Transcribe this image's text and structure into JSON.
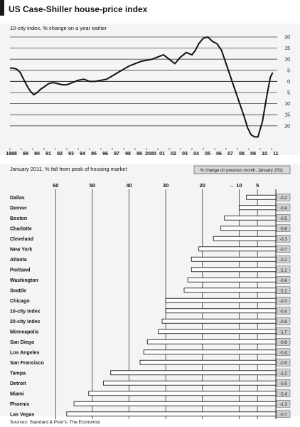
{
  "title": "US Case-Shiller house-price index",
  "source": "Sources: Standard & Poor's; The Economist",
  "chart_data": [
    {
      "type": "line",
      "title": "",
      "subtitle": "10-city index, % change on a year earlier",
      "x_tick_labels": [
        "1988",
        "89",
        "90",
        "91",
        "92",
        "93",
        "94",
        "95",
        "96",
        "97",
        "98",
        "99",
        "2000",
        "01",
        "02",
        "03",
        "04",
        "05",
        "06",
        "07",
        "08",
        "09",
        "10",
        "11"
      ],
      "xlim": [
        1988,
        2011.5
      ],
      "ylim": [
        -30,
        20
      ],
      "y_ticks": [
        20,
        15,
        10,
        5,
        0,
        -5,
        -10,
        -15,
        -20
      ],
      "y_tick_labels": [
        "20",
        "15",
        "10",
        "5",
        "0",
        "5",
        "10",
        "15",
        "20"
      ],
      "legend": "none",
      "grid": "horizontal",
      "series": [
        {
          "name": "",
          "x": [
            1988.0,
            1988.3,
            1988.6,
            1988.9,
            1989.2,
            1989.5,
            1989.8,
            1990.1,
            1990.4,
            1990.7,
            1991.0,
            1991.4,
            1991.8,
            1992.2,
            1992.6,
            1993.0,
            1993.5,
            1994.0,
            1994.5,
            1995.0,
            1995.5,
            1996.0,
            1996.5,
            1997.0,
            1997.5,
            1998.0,
            1998.5,
            1999.0,
            1999.5,
            2000.0,
            2000.5,
            2001.0,
            2001.5,
            2002.0,
            2002.5,
            2003.0,
            2003.5,
            2004.0,
            2004.3,
            2004.6,
            2005.0,
            2005.4,
            2005.8,
            2006.2,
            2006.6,
            2007.0,
            2007.4,
            2007.8,
            2008.2,
            2008.6,
            2008.9,
            2009.2,
            2009.5,
            2009.8,
            2010.2,
            2010.6,
            2010.9,
            2011.1
          ],
          "y": [
            6,
            6,
            5.5,
            4,
            1,
            -2,
            -4.5,
            -6,
            -5,
            -3.5,
            -2.5,
            -1,
            -0.5,
            -1,
            -1.5,
            -1.5,
            -0.5,
            0.5,
            1,
            0,
            0,
            0.5,
            1,
            2.5,
            4,
            5.5,
            7,
            8,
            9,
            9.5,
            10,
            11,
            12,
            10,
            8,
            11,
            13,
            12,
            14,
            17,
            19.5,
            20,
            18,
            17,
            14,
            8,
            2,
            -4,
            -10,
            -16,
            -21,
            -24,
            -25,
            -25,
            -18,
            -6,
            2,
            4
          ]
        }
      ]
    },
    {
      "type": "bar",
      "title": "",
      "subtitle": "January 2011, % fall from peak of housing market",
      "legend_label": "% change on previous month, January 2011",
      "xlim": [
        -62,
        0
      ],
      "x_ticks": [
        -60,
        -50,
        -40,
        -30,
        -20,
        -10,
        -5
      ],
      "x_tick_labels": [
        "60",
        "50",
        "40",
        "30",
        "20",
        "10",
        "5"
      ],
      "categories": [
        "Dallas",
        "Denver",
        "Boston",
        "Charlotte",
        "Cleveland",
        "New York",
        "Atlanta",
        "Portland",
        "Washington",
        "Seattle",
        "Chicago",
        "10-city index",
        "20-city index",
        "Minneapolis",
        "San Diego",
        "Los Angeles",
        "San Francisco",
        "Tampa",
        "Detroit",
        "Miami",
        "Phoenix",
        "Las Vegas"
      ],
      "values": [
        -8,
        -10,
        -14,
        -15,
        -17,
        -21,
        -23,
        -23,
        -24,
        -25,
        -30,
        -30,
        -31,
        -32,
        -35,
        -36,
        -37,
        -45,
        -47,
        -51,
        -55,
        -57
      ],
      "monthly_change": [
        "-0.2",
        "-0.4",
        "-0.5",
        "-0.6",
        "-0.3",
        "-0.7",
        "-2.2",
        "-1.1",
        "-0.6",
        "-1.1",
        "-2.0",
        "-0.4",
        "-0.8",
        "-1.7",
        "-0.6",
        "-0.4",
        "-0.5",
        "-1.2",
        "-0.5",
        "-1.4",
        "-1.3",
        "-0.7"
      ]
    }
  ]
}
